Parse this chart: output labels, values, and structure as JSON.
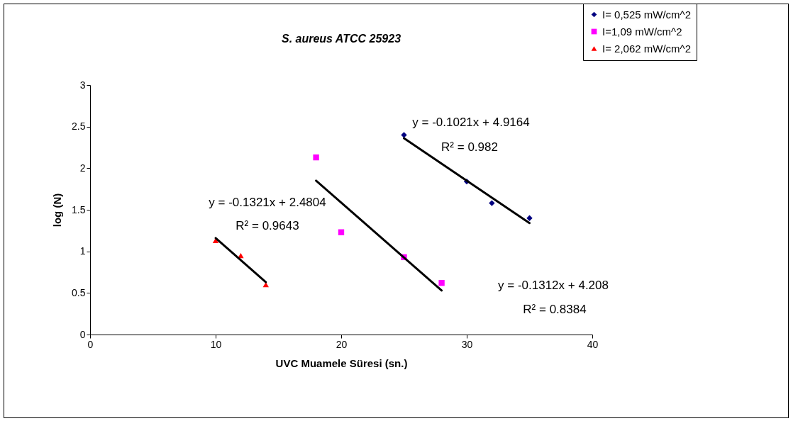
{
  "chart_data": {
    "type": "scatter",
    "title": "S. aureus ATCC 25923",
    "xlabel": "UVC Muamele Süresi (sn.)",
    "ylabel": "log (N)",
    "xlim": [
      0,
      40
    ],
    "xticks": [
      0,
      10,
      20,
      30,
      40
    ],
    "ylim": [
      0,
      3
    ],
    "yticks": [
      0,
      0.5,
      1,
      1.5,
      2,
      2.5,
      3
    ],
    "grid": false,
    "legend": "top right",
    "series": [
      {
        "name": "I= 0,525 mW/cm^2",
        "color": "#000080",
        "marker": "diamond",
        "x": [
          25,
          30,
          32,
          35
        ],
        "values": [
          2.4,
          1.84,
          1.58,
          1.4
        ]
      },
      {
        "name": "I=1,09 mW/cm^2",
        "color": "#ff00ff",
        "marker": "square",
        "x": [
          18,
          20,
          25,
          28
        ],
        "values": [
          2.13,
          1.23,
          0.93,
          0.62
        ]
      },
      {
        "name": "I= 2,062 mW/cm^2",
        "color": "#ff0000",
        "marker": "triangle",
        "x": [
          10,
          12,
          14
        ],
        "values": [
          1.13,
          0.95,
          0.6
        ]
      },
      {
        "type": "line",
        "color": "#000000",
        "x": [
          25,
          35
        ],
        "values": [
          2.36,
          1.34
        ]
      },
      {
        "type": "line",
        "color": "#000000",
        "x": [
          18,
          28
        ],
        "values": [
          1.85,
          0.53
        ]
      },
      {
        "type": "line",
        "color": "#000000",
        "x": [
          10,
          14
        ],
        "values": [
          1.16,
          0.63
        ]
      }
    ],
    "annotations": [
      "y = -0.1021x + 4.9164",
      "R² = 0.982",
      "y = -0.1321x + 2.4804",
      "R² = 0.9643",
      "y = -0.1312x + 4.208",
      "R² = 0.8384"
    ]
  }
}
